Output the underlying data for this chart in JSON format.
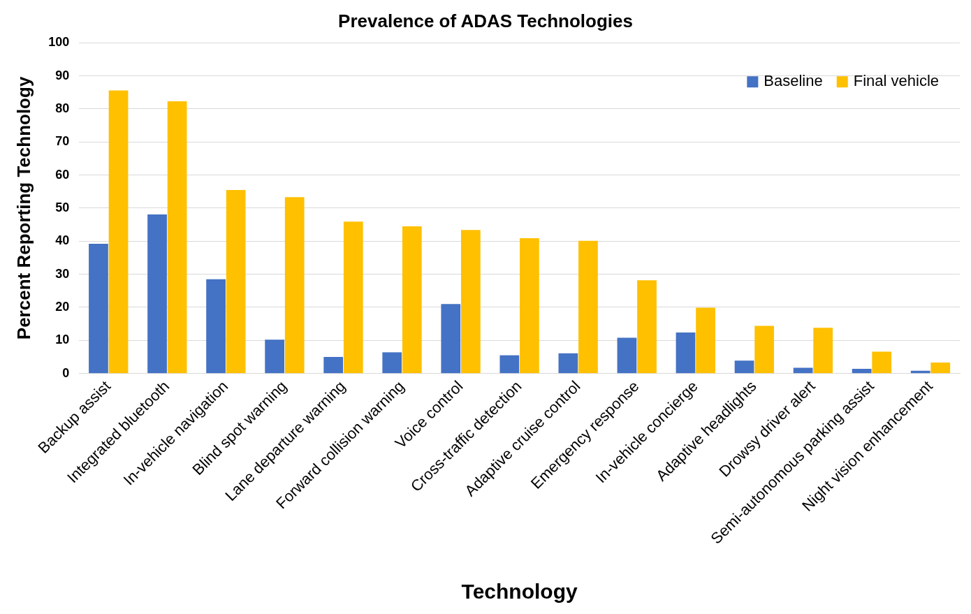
{
  "chart_data": {
    "type": "bar",
    "title": "Prevalence of ADAS Technologies",
    "xlabel": "Technology",
    "ylabel": "Percent Reporting Technology",
    "categories": [
      "Backup assist",
      "Integrated bluetooth",
      "In-vehicle navigation",
      "Blind spot warning",
      "Lane departure warning",
      "Forward collision warning",
      "Voice control",
      "Cross-traffic detection",
      "Adaptive cruise control",
      "Emergency response",
      "In-vehicle concierge",
      "Adaptive headlights",
      "Drowsy driver alert",
      "Semi-autonomous parking assist",
      "Night vision enhancement"
    ],
    "series": [
      {
        "name": "Baseline",
        "color": "#4472c4",
        "values": [
          39.2,
          48.1,
          28.5,
          10.2,
          5,
          6.4,
          21,
          5.5,
          6.1,
          10.8,
          12.4,
          3.9,
          1.7,
          1.4,
          0.8
        ]
      },
      {
        "name": "Final vehicle",
        "color": "#ffc000",
        "values": [
          85.6,
          82.3,
          55.5,
          53.3,
          45.9,
          44.5,
          43.4,
          40.9,
          40.1,
          28.2,
          19.9,
          14.4,
          13.8,
          6.6,
          3.3
        ]
      }
    ],
    "ylim": [
      0,
      100
    ],
    "yticks": [
      0,
      10,
      20,
      30,
      40,
      50,
      60,
      70,
      80,
      90,
      100
    ],
    "grid": "y",
    "legend": "top right"
  }
}
